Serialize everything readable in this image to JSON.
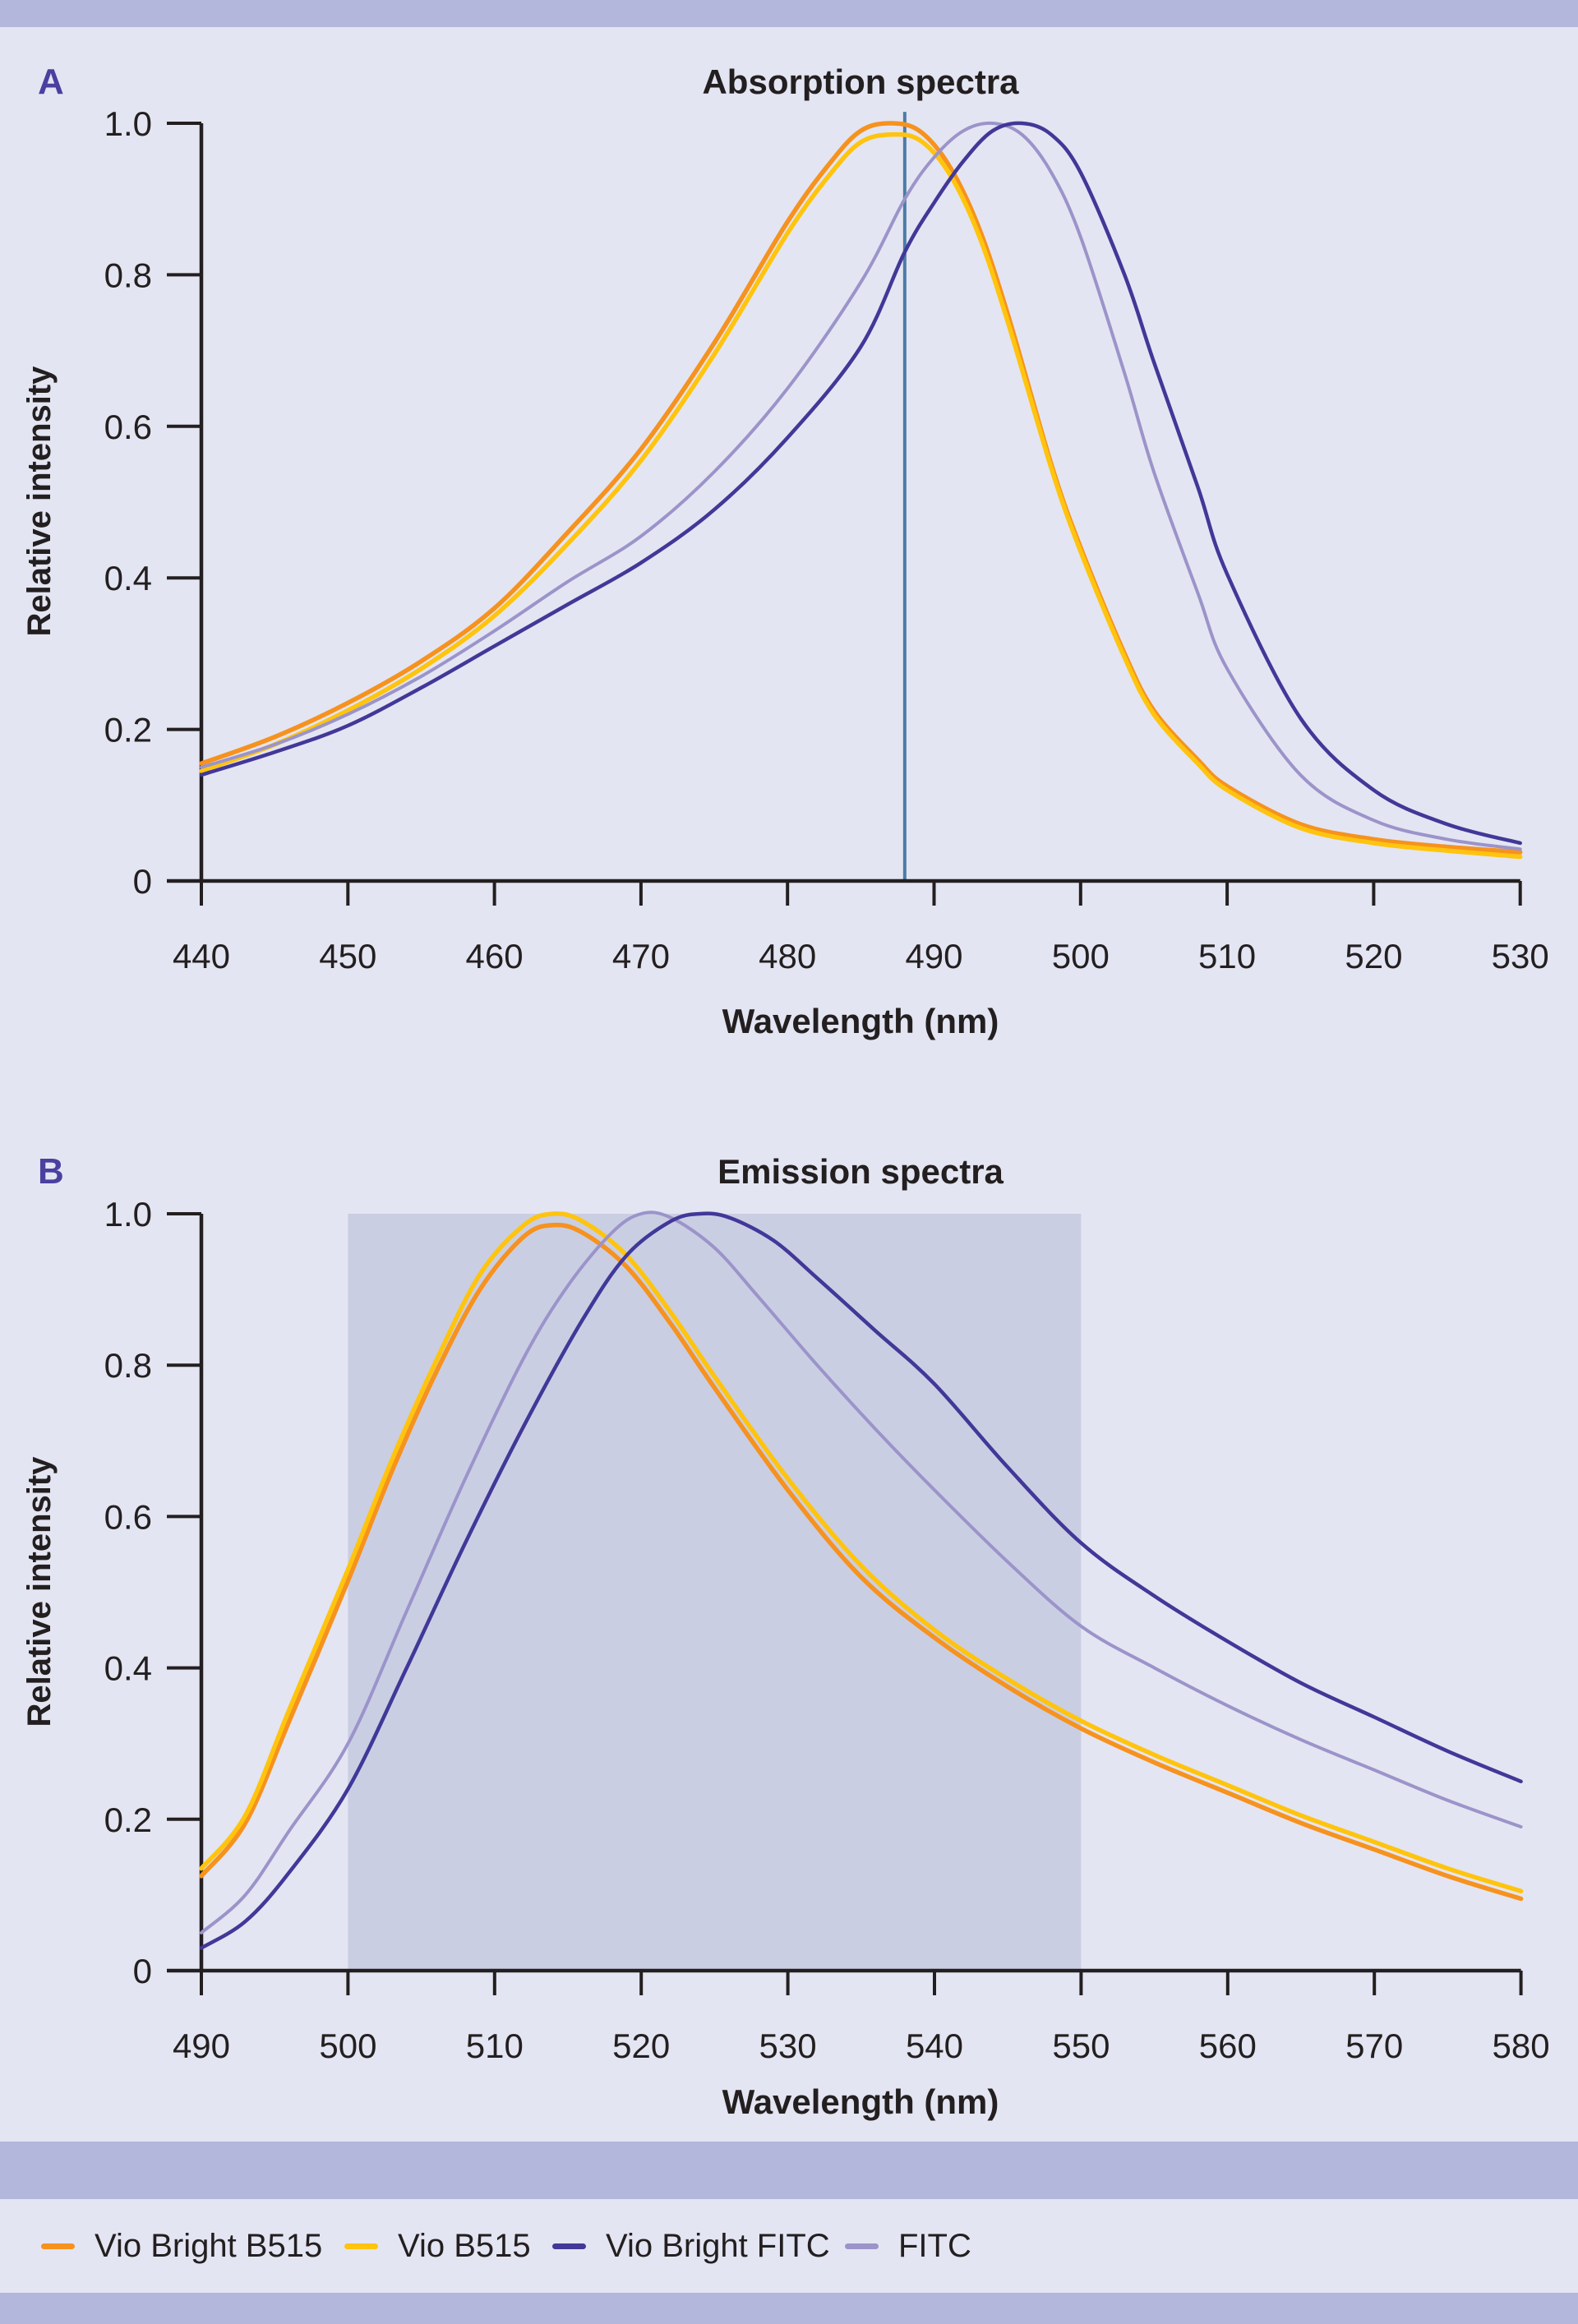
{
  "page": {
    "background_color": "#e4e5f2",
    "band_color": "#b3b7db",
    "axis_color": "#231f20"
  },
  "legend": {
    "items": [
      {
        "label": "Vio Bright B515",
        "color": "#f6921e"
      },
      {
        "label": "Vio B515",
        "color": "#ffc40e"
      },
      {
        "label": "Vio Bright FITC",
        "color": "#413898"
      },
      {
        "label": "FITC",
        "color": "#9b94ca"
      }
    ]
  },
  "chart_data": [
    {
      "type": "line",
      "panel_label": "A",
      "title": "Absorption spectra",
      "xlabel": "Wavelength (nm)",
      "ylabel": "Relative intensity",
      "xlim": [
        440,
        530
      ],
      "ylim": [
        0,
        1.0
      ],
      "x_ticks": [
        440,
        450,
        460,
        470,
        480,
        490,
        500,
        510,
        520,
        530
      ],
      "y_ticks": [
        0,
        0.2,
        0.4,
        0.6,
        0.8,
        1.0
      ],
      "y_tick_labels": [
        "0",
        "0.2",
        "0.4",
        "0.6",
        "0.8",
        "1.0"
      ],
      "grid": false,
      "legend_position": "none",
      "laser_line": {
        "wavelength_nm": 488,
        "color": "#4d7ca6",
        "top_value": 1.015
      },
      "series": [
        {
          "name": "Vio Bright B515",
          "color": "#f6921e",
          "stroke_width": 5.5,
          "x": [
            440,
            445,
            450,
            455,
            460,
            465,
            470,
            475,
            480,
            483,
            485,
            487,
            489,
            491,
            493,
            495,
            498,
            500,
            503,
            505,
            508,
            510,
            515,
            520,
            525,
            530
          ],
          "y": [
            0.155,
            0.19,
            0.235,
            0.29,
            0.36,
            0.46,
            0.57,
            0.71,
            0.87,
            0.95,
            0.99,
            1.0,
            0.99,
            0.945,
            0.865,
            0.75,
            0.55,
            0.44,
            0.3,
            0.225,
            0.16,
            0.125,
            0.075,
            0.055,
            0.045,
            0.038
          ]
        },
        {
          "name": "Vio B515",
          "color": "#ffc40e",
          "stroke_width": 5.5,
          "x": [
            440,
            445,
            450,
            455,
            460,
            465,
            470,
            475,
            480,
            483,
            485,
            487,
            489,
            491,
            493,
            495,
            498,
            500,
            503,
            505,
            508,
            510,
            515,
            520,
            525,
            530
          ],
          "y": [
            0.145,
            0.18,
            0.225,
            0.28,
            0.35,
            0.445,
            0.555,
            0.695,
            0.855,
            0.935,
            0.975,
            0.985,
            0.978,
            0.935,
            0.855,
            0.74,
            0.545,
            0.435,
            0.295,
            0.22,
            0.155,
            0.12,
            0.07,
            0.05,
            0.04,
            0.032
          ]
        },
        {
          "name": "FITC",
          "color": "#9b94ca",
          "stroke_width": 4,
          "x": [
            440,
            445,
            450,
            455,
            460,
            465,
            470,
            475,
            480,
            485,
            488,
            490,
            492,
            494,
            496,
            498,
            500,
            503,
            505,
            508,
            510,
            515,
            520,
            525,
            530
          ],
          "y": [
            0.15,
            0.18,
            0.22,
            0.27,
            0.33,
            0.395,
            0.455,
            0.54,
            0.65,
            0.79,
            0.9,
            0.955,
            0.99,
            1.0,
            0.985,
            0.935,
            0.85,
            0.67,
            0.54,
            0.38,
            0.28,
            0.14,
            0.08,
            0.055,
            0.042
          ]
        },
        {
          "name": "Vio Bright FITC",
          "color": "#413898",
          "stroke_width": 4.5,
          "x": [
            440,
            445,
            450,
            455,
            460,
            465,
            470,
            475,
            480,
            485,
            488,
            490,
            492,
            494,
            496,
            498,
            500,
            503,
            505,
            508,
            510,
            515,
            520,
            525,
            530
          ],
          "y": [
            0.14,
            0.17,
            0.205,
            0.255,
            0.31,
            0.365,
            0.42,
            0.49,
            0.585,
            0.705,
            0.83,
            0.895,
            0.95,
            0.99,
            1.0,
            0.985,
            0.935,
            0.8,
            0.685,
            0.52,
            0.405,
            0.215,
            0.12,
            0.075,
            0.05
          ]
        }
      ]
    },
    {
      "type": "line",
      "panel_label": "B",
      "title": "Emission spectra",
      "xlabel": "Wavelength (nm)",
      "ylabel": "Relative intensity",
      "xlim": [
        490,
        580
      ],
      "ylim": [
        0,
        1.0
      ],
      "x_ticks": [
        490,
        500,
        510,
        520,
        530,
        540,
        550,
        560,
        570,
        580
      ],
      "y_ticks": [
        0,
        0.2,
        0.4,
        0.6,
        0.8,
        1.0
      ],
      "y_tick_labels": [
        "0",
        "0.2",
        "0.4",
        "0.6",
        "0.8",
        "1.0"
      ],
      "grid": false,
      "legend_position": "none",
      "filter_band": {
        "from_nm": 500,
        "to_nm": 550,
        "color": "#cacee3"
      },
      "series": [
        {
          "name": "Vio Bright B515",
          "color": "#f6921e",
          "stroke_width": 5.5,
          "x": [
            490,
            493,
            496,
            500,
            503,
            506,
            509,
            512,
            514,
            516,
            519,
            522,
            525,
            530,
            535,
            540,
            545,
            550,
            555,
            560,
            565,
            570,
            575,
            580
          ],
          "y": [
            0.125,
            0.195,
            0.33,
            0.515,
            0.66,
            0.79,
            0.9,
            0.97,
            0.985,
            0.975,
            0.93,
            0.855,
            0.77,
            0.635,
            0.52,
            0.44,
            0.375,
            0.32,
            0.275,
            0.235,
            0.195,
            0.16,
            0.125,
            0.095
          ]
        },
        {
          "name": "Vio B515",
          "color": "#ffc40e",
          "stroke_width": 5.5,
          "x": [
            490,
            493,
            496,
            500,
            503,
            506,
            509,
            512,
            514,
            516,
            519,
            522,
            525,
            530,
            535,
            540,
            545,
            550,
            555,
            560,
            565,
            570,
            575,
            580
          ],
          "y": [
            0.135,
            0.205,
            0.345,
            0.53,
            0.675,
            0.805,
            0.92,
            0.985,
            1.0,
            0.99,
            0.945,
            0.87,
            0.785,
            0.65,
            0.535,
            0.45,
            0.385,
            0.33,
            0.285,
            0.245,
            0.205,
            0.17,
            0.135,
            0.105
          ]
        },
        {
          "name": "FITC",
          "color": "#9b94ca",
          "stroke_width": 4,
          "x": [
            490,
            493,
            496,
            500,
            504,
            508,
            512,
            515,
            518,
            520,
            522,
            525,
            528,
            532,
            536,
            540,
            545,
            550,
            555,
            560,
            565,
            570,
            575,
            580
          ],
          "y": [
            0.05,
            0.1,
            0.185,
            0.3,
            0.475,
            0.65,
            0.81,
            0.905,
            0.975,
            1.0,
            0.995,
            0.955,
            0.89,
            0.8,
            0.715,
            0.635,
            0.54,
            0.455,
            0.4,
            0.35,
            0.305,
            0.265,
            0.225,
            0.19
          ]
        },
        {
          "name": "Vio Bright FITC",
          "color": "#413898",
          "stroke_width": 4.5,
          "x": [
            490,
            493,
            496,
            500,
            504,
            508,
            512,
            516,
            519,
            522,
            524,
            526,
            529,
            532,
            536,
            540,
            545,
            550,
            555,
            560,
            565,
            570,
            575,
            580
          ],
          "y": [
            0.03,
            0.065,
            0.13,
            0.24,
            0.4,
            0.565,
            0.72,
            0.86,
            0.945,
            0.99,
            1.0,
            0.995,
            0.965,
            0.915,
            0.845,
            0.775,
            0.665,
            0.565,
            0.495,
            0.435,
            0.38,
            0.335,
            0.29,
            0.25
          ]
        }
      ]
    }
  ]
}
